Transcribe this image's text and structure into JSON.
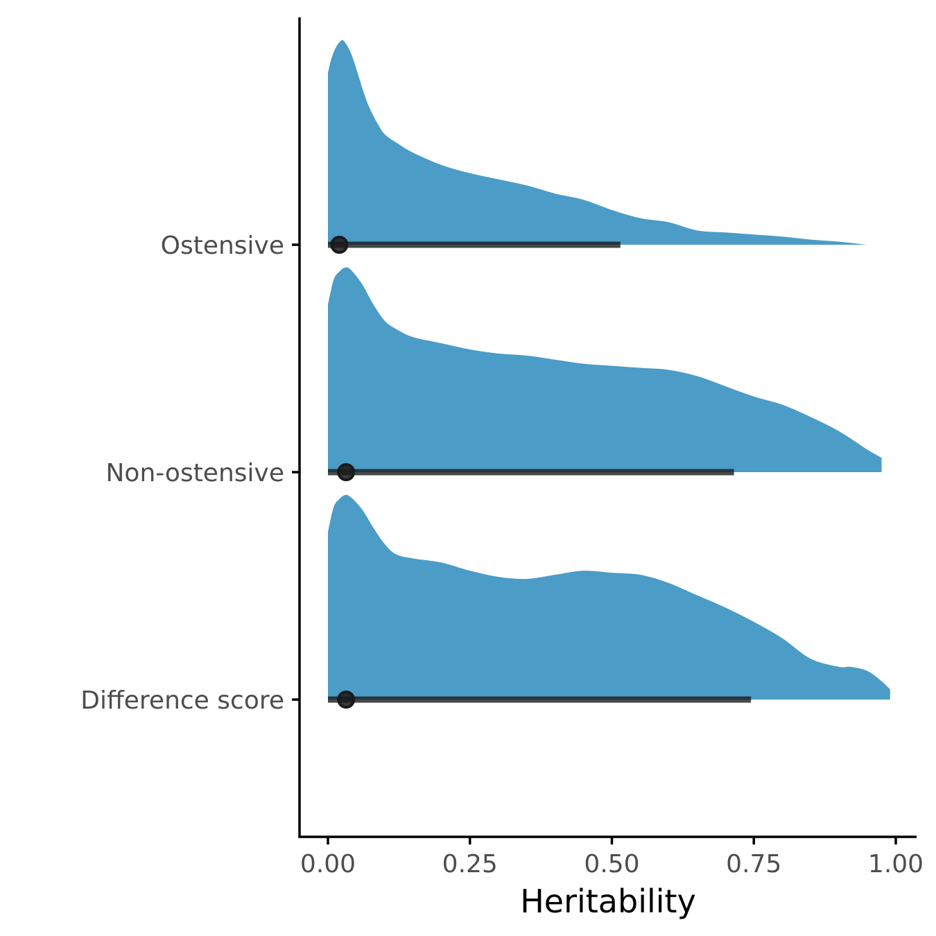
{
  "chart_data": {
    "type": "area",
    "subtype": "half-eye density with point and interval",
    "title": "",
    "xlabel": "Heritability",
    "ylabel": "",
    "xlim": [
      0,
      1
    ],
    "x_ticks": [
      "0.00",
      "0.25",
      "0.50",
      "0.75",
      "1.00"
    ],
    "x_tick_values": [
      0,
      0.25,
      0.5,
      0.75,
      1.0
    ],
    "categories": [
      "Ostensive",
      "Non-ostensive",
      "Difference score"
    ],
    "grid": false,
    "legend": "none",
    "colors": {
      "density_fill": "#4b9cc7",
      "point_interval": "#1a1a1a",
      "tick_label": "#4d4d4d",
      "axis": "#000000"
    },
    "series": [
      {
        "category": "Ostensive",
        "point_estimate": 0.02,
        "interval": [
          0.0,
          0.515
        ],
        "density_x": [
          0.0,
          0.005,
          0.01,
          0.015,
          0.02,
          0.025,
          0.03,
          0.04,
          0.05,
          0.06,
          0.07,
          0.08,
          0.09,
          0.1,
          0.12,
          0.15,
          0.2,
          0.25,
          0.3,
          0.35,
          0.4,
          0.45,
          0.5,
          0.55,
          0.6,
          0.65,
          0.7,
          0.75,
          0.8,
          0.85,
          0.9,
          0.95
        ],
        "density_y": [
          0.84,
          0.9,
          0.94,
          0.97,
          0.99,
          1.0,
          0.99,
          0.94,
          0.86,
          0.77,
          0.69,
          0.63,
          0.58,
          0.54,
          0.5,
          0.45,
          0.39,
          0.35,
          0.32,
          0.29,
          0.25,
          0.22,
          0.17,
          0.13,
          0.11,
          0.07,
          0.06,
          0.05,
          0.04,
          0.025,
          0.015,
          0.0
        ]
      },
      {
        "category": "Non-ostensive",
        "point_estimate": 0.032,
        "interval": [
          0.0,
          0.715
        ],
        "density_x": [
          0.0,
          0.01,
          0.02,
          0.03,
          0.04,
          0.06,
          0.08,
          0.1,
          0.12,
          0.15,
          0.2,
          0.25,
          0.3,
          0.35,
          0.4,
          0.45,
          0.5,
          0.55,
          0.6,
          0.65,
          0.7,
          0.75,
          0.8,
          0.85,
          0.9,
          0.95,
          0.975
        ],
        "density_y": [
          0.82,
          0.94,
          0.98,
          1.0,
          0.99,
          0.92,
          0.82,
          0.74,
          0.7,
          0.66,
          0.63,
          0.6,
          0.58,
          0.57,
          0.55,
          0.53,
          0.52,
          0.51,
          0.5,
          0.47,
          0.42,
          0.37,
          0.33,
          0.27,
          0.2,
          0.11,
          0.07
        ]
      },
      {
        "category": "Difference score",
        "point_estimate": 0.032,
        "interval": [
          0.0,
          0.745
        ],
        "density_x": [
          0.0,
          0.01,
          0.02,
          0.03,
          0.04,
          0.06,
          0.08,
          0.1,
          0.12,
          0.15,
          0.2,
          0.25,
          0.3,
          0.35,
          0.4,
          0.45,
          0.5,
          0.55,
          0.6,
          0.65,
          0.7,
          0.75,
          0.8,
          0.85,
          0.9,
          0.92,
          0.95,
          0.975,
          0.99
        ],
        "density_y": [
          0.82,
          0.94,
          0.98,
          1.0,
          0.99,
          0.93,
          0.84,
          0.76,
          0.71,
          0.69,
          0.67,
          0.63,
          0.6,
          0.59,
          0.61,
          0.63,
          0.62,
          0.61,
          0.57,
          0.51,
          0.45,
          0.38,
          0.3,
          0.2,
          0.16,
          0.16,
          0.14,
          0.09,
          0.05
        ]
      }
    ]
  }
}
